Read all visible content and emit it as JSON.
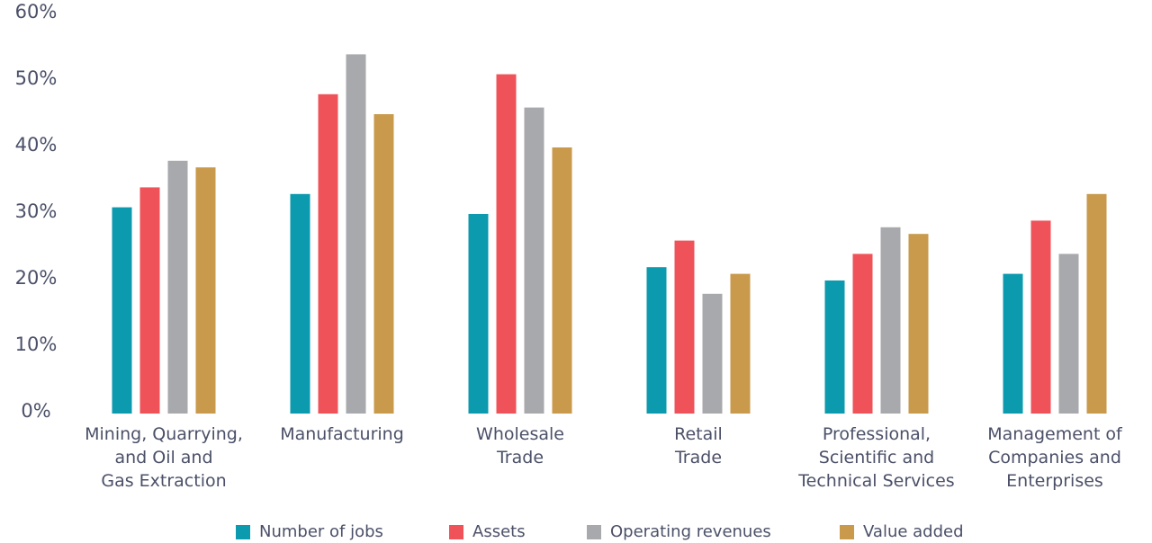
{
  "chart_data": {
    "type": "bar",
    "categories": [
      "Mining, Quarrying,\nand Oil and\nGas Extraction",
      "Manufacturing",
      "Wholesale\nTrade",
      "Retail\nTrade",
      "Professional,\nScientific and\nTechnical Services",
      "Management of\nCompanies and\nEnterprises"
    ],
    "series": [
      {
        "name": "Number of jobs",
        "color": "#0b9aae",
        "values": [
          31,
          33,
          30,
          22,
          20,
          21
        ]
      },
      {
        "name": "Assets",
        "color": "#ef5359",
        "values": [
          34,
          48,
          51,
          26,
          24,
          29
        ]
      },
      {
        "name": "Operating revenues",
        "color": "#a8a9ad",
        "values": [
          38,
          54,
          46,
          18,
          28,
          24
        ]
      },
      {
        "name": "Value added",
        "color": "#c99a4b",
        "values": [
          37,
          45,
          40,
          21,
          27,
          33
        ]
      }
    ],
    "ylim": [
      0,
      60
    ],
    "yticks": [
      {
        "value": 0,
        "label": "0%"
      },
      {
        "value": 10,
        "label": "10%"
      },
      {
        "value": 20,
        "label": "20%"
      },
      {
        "value": 30,
        "label": "30%"
      },
      {
        "value": 40,
        "label": "40%"
      },
      {
        "value": 50,
        "label": "50%"
      },
      {
        "value": 60,
        "label": "60%"
      }
    ],
    "grid": false,
    "legend": "bottom"
  }
}
